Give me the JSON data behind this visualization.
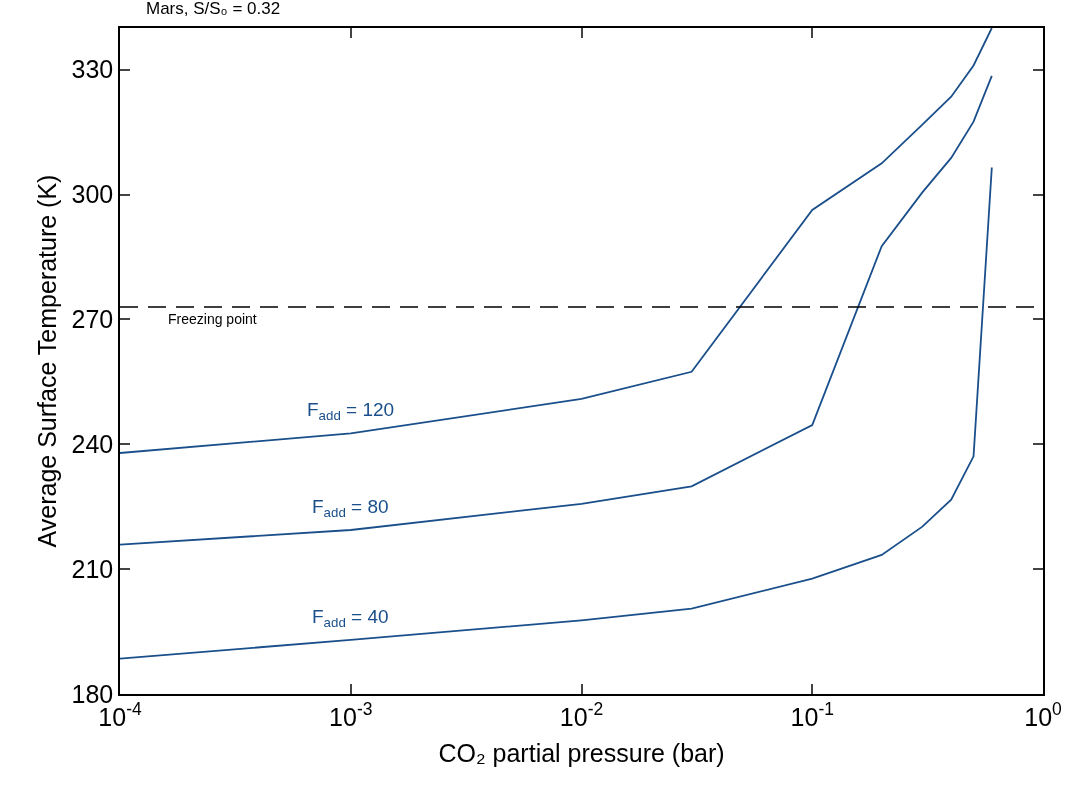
{
  "chart_data": {
    "type": "line",
    "title": "Mars, S/S₀ = 0.32",
    "xlabel": "CO₂ partial pressure (bar)",
    "ylabel": "Average Surface Temperature (K)",
    "x": [
      0.0001,
      0.001,
      0.01,
      0.03,
      0.1,
      0.2,
      0.3,
      0.4,
      0.5,
      0.6
    ],
    "series": [
      {
        "color": "#1a4f8b",
        "values": [
          237.9,
          242.6,
          250.9,
          257.4,
          296.3,
          307.5,
          316.8,
          323.5,
          331,
          340
        ]
      },
      {
        "color": "#1a4f8b",
        "values": [
          215.9,
          219.4,
          225.7,
          229.9,
          244.6,
          287.6,
          300.5,
          308.8,
          317.5,
          328.5
        ]
      },
      {
        "color": "#1a4f8b",
        "values": [
          188.5,
          193,
          197.7,
          200.5,
          207.7,
          213.4,
          220.2,
          226.7,
          237.1,
          306.5
        ]
      }
    ],
    "annotations": [
      "F$_{add}$ = 120",
      "F$_{add}$ = 80",
      "F$_{add}$ = 40"
    ],
    "ref_lines": [
      {
        "axis": "y",
        "value": 273,
        "label": "Freezing point",
        "color": "#000000",
        "line_style": "dashed"
      }
    ],
    "log": "x",
    "xlim": [
      0.0001,
      1
    ],
    "ylim": [
      180,
      340
    ],
    "xticks": [
      {
        "value": 0.0001,
        "label": "10$^{-4}$"
      },
      {
        "value": 0.001,
        "label": "10$^{-3}$"
      },
      {
        "value": 0.01,
        "label": "10$^{-2}$"
      },
      {
        "value": 0.1,
        "label": "10$^{-1}$"
      },
      {
        "value": 1,
        "label": "10$^{0}$"
      }
    ],
    "yticks": [
      180,
      210,
      240,
      270,
      300,
      330
    ],
    "marker": "none",
    "line_style": "solid"
  }
}
